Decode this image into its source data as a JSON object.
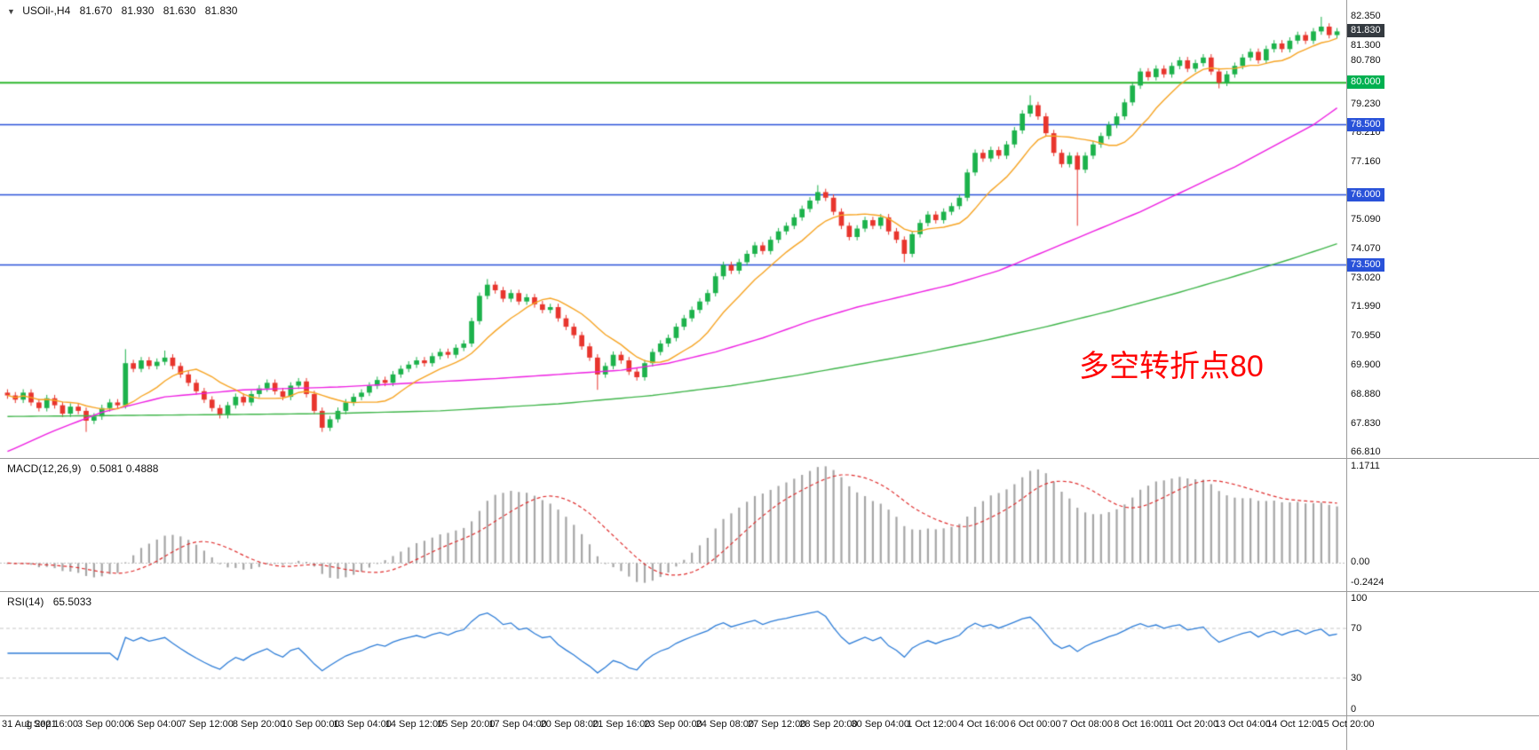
{
  "header": {
    "collapse_icon": "▼",
    "symbol": "USOil-,H4",
    "open": "81.670",
    "high": "81.930",
    "low": "81.630",
    "close": "81.830"
  },
  "annotation": {
    "text": "多空转折点80",
    "color": "#ff0000"
  },
  "colors": {
    "bull": "#1cb24b",
    "bear": "#e8352d",
    "ma_fast": "#f7a525",
    "ma_mid": "#ee1fe2",
    "ma_slow": "#41b64c",
    "hline_green": "#2eb82e",
    "hline_blue": "#2952d9",
    "macd_hist": "#a6a6a6",
    "macd_signal": "#e03030",
    "macd_zero": "#c0c0c0",
    "rsi_line": "#2f7ed8",
    "rsi_level": "#c8c8c8",
    "badge_current_bg": "#343a40",
    "badge_green_bg": "#00b050",
    "badge_blue_bg": "#2952d9"
  },
  "price_scale": {
    "ticks": [
      "82.350",
      "81.300",
      "80.780",
      "79.230",
      "78.210",
      "77.160",
      "75.090",
      "74.070",
      "73.020",
      "71.990",
      "70.950",
      "69.900",
      "68.880",
      "67.830",
      "66.810"
    ],
    "badges": [
      {
        "label": "81.830",
        "value": 81.83,
        "type": "current"
      },
      {
        "label": "80.000",
        "value": 80.0,
        "type": "green"
      },
      {
        "label": "78.500",
        "value": 78.5,
        "type": "blue"
      },
      {
        "label": "76.000",
        "value": 76.0,
        "type": "blue"
      },
      {
        "label": "73.500",
        "value": 73.5,
        "type": "blue"
      }
    ]
  },
  "chart_data": [
    {
      "type": "candlestick",
      "title": "USOil-,H4",
      "timeframe": "H4",
      "ohlc_current": {
        "open": 81.67,
        "high": 81.93,
        "low": 81.63,
        "close": 81.83
      },
      "y_range": [
        66.62,
        82.95
      ],
      "x_labels": [
        "31 Aug 2021",
        "1 Sep 16:00",
        "3 Sep 00:00",
        "6 Sep 04:00",
        "7 Sep 12:00",
        "8 Sep 20:00",
        "10 Sep 00:00",
        "13 Sep 04:00",
        "14 Sep 12:00",
        "15 Sep 20:00",
        "17 Sep 04:00",
        "20 Sep 08:00",
        "21 Sep 16:00",
        "23 Sep 00:00",
        "24 Sep 08:00",
        "27 Sep 12:00",
        "28 Sep 20:00",
        "30 Sep 04:00",
        "1 Oct 12:00",
        "4 Oct 16:00",
        "6 Oct 00:00",
        "7 Oct 08:00",
        "8 Oct 16:00",
        "11 Oct 20:00",
        "13 Oct 04:00",
        "14 Oct 12:00",
        "15 Oct 20:00"
      ],
      "first_open": 68.95,
      "default_wick": 0.12,
      "closes": [
        68.85,
        68.7,
        68.95,
        68.6,
        68.4,
        68.75,
        68.5,
        68.2,
        68.45,
        68.3,
        67.95,
        68.1,
        68.4,
        68.6,
        68.5,
        70.0,
        69.8,
        70.1,
        69.9,
        70.05,
        70.2,
        69.9,
        69.6,
        69.3,
        69.0,
        68.7,
        68.4,
        68.15,
        68.5,
        68.8,
        68.6,
        68.9,
        69.1,
        69.3,
        69.0,
        68.8,
        69.2,
        69.35,
        68.9,
        68.3,
        67.7,
        68.0,
        68.3,
        68.6,
        68.8,
        68.95,
        69.2,
        69.4,
        69.3,
        69.6,
        69.8,
        69.95,
        70.1,
        70.0,
        70.25,
        70.4,
        70.3,
        70.55,
        70.7,
        71.5,
        72.4,
        72.8,
        72.6,
        72.3,
        72.5,
        72.2,
        72.35,
        72.1,
        71.9,
        72.0,
        71.6,
        71.3,
        71.0,
        70.6,
        70.2,
        69.6,
        69.9,
        70.3,
        70.1,
        69.7,
        69.5,
        70.0,
        70.4,
        70.7,
        70.9,
        71.3,
        71.6,
        71.9,
        72.2,
        72.5,
        73.1,
        73.5,
        73.3,
        73.6,
        73.9,
        74.2,
        74.0,
        74.4,
        74.7,
        74.9,
        75.2,
        75.5,
        75.8,
        76.1,
        75.9,
        75.4,
        74.9,
        74.5,
        74.8,
        75.1,
        74.9,
        75.2,
        74.7,
        74.4,
        73.9,
        74.6,
        75.0,
        75.3,
        75.1,
        75.4,
        75.6,
        75.9,
        76.8,
        77.5,
        77.3,
        77.6,
        77.4,
        77.8,
        78.3,
        78.9,
        79.2,
        78.8,
        78.2,
        77.5,
        77.1,
        77.4,
        76.9,
        77.4,
        77.8,
        78.1,
        78.5,
        78.8,
        79.3,
        79.9,
        80.4,
        80.2,
        80.5,
        80.3,
        80.6,
        80.8,
        80.5,
        80.7,
        80.9,
        80.4,
        80.0,
        80.3,
        80.6,
        80.9,
        81.1,
        80.8,
        81.2,
        81.4,
        81.2,
        81.5,
        81.7,
        81.5,
        81.83,
        82.0,
        81.7,
        81.83
      ],
      "wick_overrides": {
        "10": {
          "low": 67.55
        },
        "15": {
          "high": 70.5
        },
        "20": {
          "high": 70.45
        },
        "40": {
          "low": 67.55
        },
        "61": {
          "high": 73.0
        },
        "75": {
          "low": 69.05
        },
        "103": {
          "high": 76.35
        },
        "114": {
          "low": 73.6
        },
        "130": {
          "high": 79.55
        },
        "136": {
          "low": 74.9
        },
        "154": {
          "low": 79.8
        },
        "167": {
          "high": 82.35
        }
      },
      "hlines": [
        {
          "price": 80.0,
          "color": "green",
          "label": "80.000"
        },
        {
          "price": 78.5,
          "color": "blue",
          "label": "78.500"
        },
        {
          "price": 76.0,
          "color": "blue",
          "label": "76.000"
        },
        {
          "price": 73.5,
          "color": "blue",
          "label": "73.500"
        }
      ],
      "moving_averages": {
        "fast": {
          "style": "sma",
          "period": 10
        },
        "mid": {
          "style": "waypoints",
          "points": [
            [
              0,
              66.85
            ],
            [
              6,
              67.6
            ],
            [
              12,
              68.25
            ],
            [
              20,
              68.8
            ],
            [
              30,
              69.05
            ],
            [
              42,
              69.15
            ],
            [
              52,
              69.3
            ],
            [
              62,
              69.45
            ],
            [
              70,
              69.6
            ],
            [
              78,
              69.75
            ],
            [
              84,
              70.0
            ],
            [
              90,
              70.4
            ],
            [
              96,
              70.9
            ],
            [
              102,
              71.5
            ],
            [
              108,
              72.0
            ],
            [
              114,
              72.4
            ],
            [
              120,
              72.8
            ],
            [
              126,
              73.3
            ],
            [
              132,
              74.0
            ],
            [
              138,
              74.7
            ],
            [
              144,
              75.4
            ],
            [
              150,
              76.2
            ],
            [
              156,
              77.0
            ],
            [
              162,
              77.9
            ],
            [
              166,
              78.5
            ],
            [
              170,
              79.3
            ]
          ]
        },
        "slow": {
          "style": "waypoints",
          "points": [
            [
              0,
              68.1
            ],
            [
              20,
              68.15
            ],
            [
              40,
              68.2
            ],
            [
              55,
              68.3
            ],
            [
              70,
              68.55
            ],
            [
              82,
              68.85
            ],
            [
              92,
              69.2
            ],
            [
              100,
              69.55
            ],
            [
              108,
              69.95
            ],
            [
              116,
              70.35
            ],
            [
              124,
              70.8
            ],
            [
              132,
              71.3
            ],
            [
              140,
              71.85
            ],
            [
              148,
              72.45
            ],
            [
              156,
              73.1
            ],
            [
              163,
              73.7
            ],
            [
              170,
              74.35
            ]
          ]
        }
      }
    },
    {
      "type": "macd",
      "label": "MACD(12,26,9)",
      "values": "0.5081 0.4888",
      "params": [
        12,
        26,
        9
      ],
      "scale_labels": {
        "high": "1.1711",
        "zero": "0.00",
        "low": "-0.2424"
      }
    },
    {
      "type": "rsi",
      "label": "RSI(14)",
      "value": "65.5033",
      "period": 14,
      "levels": [
        70,
        30
      ],
      "scale_labels": [
        {
          "text": "100",
          "level": 100
        },
        {
          "text": "70",
          "level": 70
        },
        {
          "text": "30",
          "level": 30
        },
        {
          "text": "0",
          "level": 0
        }
      ]
    }
  ]
}
